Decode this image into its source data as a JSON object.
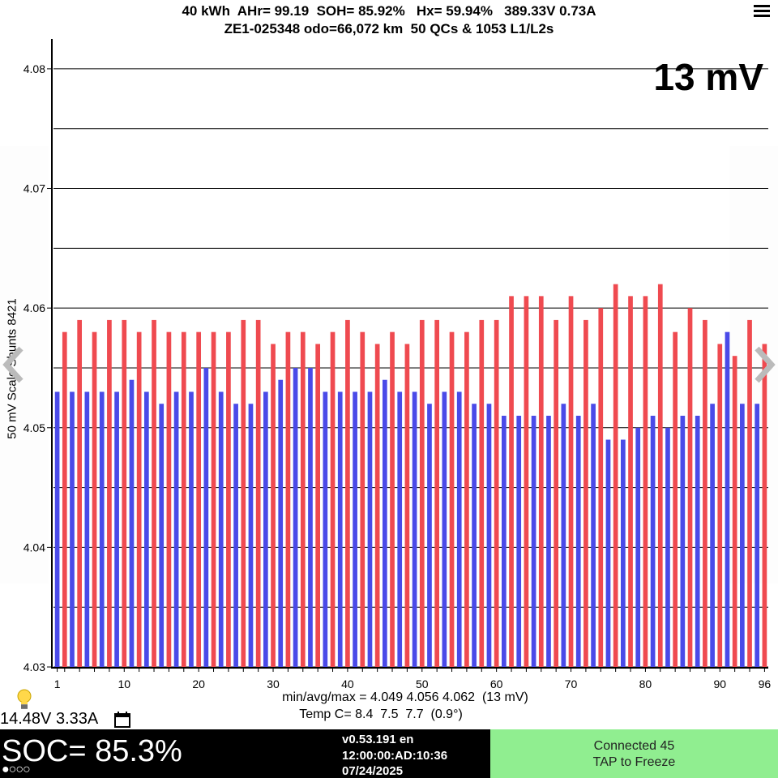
{
  "header": {
    "line1": "40 kWh  AHr= 99.19  SOH= 85.92%   Hx= 59.94%   389.33V 0.73A",
    "line2": "ZE1-025348 odo=66,072 km  50 QCs & 1053 L1/L2s"
  },
  "spread_label": "13 mV",
  "stats": {
    "minavgmax": "min/avg/max = 4.049 4.056 4.062  (13 mV)",
    "temp": "Temp C= 8.4  7.5  7.7  (0.9°)"
  },
  "status": {
    "aux_voltage": "14.48V 3.33A",
    "soc": "SOC= 85.3%",
    "version": "v0.53.191 en",
    "clock": "12:00:00:AD:10:36",
    "date": "07/24/2025",
    "dots": "●○○○"
  },
  "connection": {
    "line1": "Connected 45",
    "line2": "TAP to Freeze"
  },
  "icons": {
    "menu": "menu-icon",
    "bulb": "lightbulb-icon",
    "calendar": "calendar-icon",
    "left": "chevron-left-icon",
    "right": "chevron-right-icon"
  },
  "colors": {
    "odd_cell": "#4a4ae8",
    "even_cell": "#ef4a50",
    "connect_bg": "#90ee90"
  },
  "chart_data": {
    "type": "bar",
    "ylabel": "50 mV Scale  Shunts 8421",
    "ylim": [
      4.03,
      4.0825
    ],
    "yticks": [
      4.03,
      4.04,
      4.05,
      4.06,
      4.07,
      4.08
    ],
    "ytick_labels": [
      "4.03",
      "4.04",
      "4.05",
      "4.06",
      "4.07",
      "4.08"
    ],
    "xticks": [
      1,
      10,
      20,
      30,
      40,
      50,
      60,
      70,
      80,
      90,
      96
    ],
    "xtick_labels": [
      "1",
      "10",
      "20",
      "30",
      "40",
      "50",
      "60",
      "70",
      "80",
      "90",
      "96"
    ],
    "x": [
      1,
      2,
      3,
      4,
      5,
      6,
      7,
      8,
      9,
      10,
      11,
      12,
      13,
      14,
      15,
      16,
      17,
      18,
      19,
      20,
      21,
      22,
      23,
      24,
      25,
      26,
      27,
      28,
      29,
      30,
      31,
      32,
      33,
      34,
      35,
      36,
      37,
      38,
      39,
      40,
      41,
      42,
      43,
      44,
      45,
      46,
      47,
      48,
      49,
      50,
      51,
      52,
      53,
      54,
      55,
      56,
      57,
      58,
      59,
      60,
      61,
      62,
      63,
      64,
      65,
      66,
      67,
      68,
      69,
      70,
      71,
      72,
      73,
      74,
      75,
      76,
      77,
      78,
      79,
      80,
      81,
      82,
      83,
      84,
      85,
      86,
      87,
      88,
      89,
      90,
      91,
      92,
      93,
      94,
      95,
      96
    ],
    "values": [
      4.053,
      4.058,
      4.053,
      4.059,
      4.053,
      4.058,
      4.053,
      4.059,
      4.053,
      4.059,
      4.054,
      4.058,
      4.053,
      4.059,
      4.052,
      4.058,
      4.053,
      4.058,
      4.053,
      4.058,
      4.055,
      4.058,
      4.053,
      4.058,
      4.052,
      4.059,
      4.052,
      4.059,
      4.053,
      4.057,
      4.054,
      4.058,
      4.055,
      4.058,
      4.055,
      4.057,
      4.053,
      4.058,
      4.053,
      4.059,
      4.053,
      4.058,
      4.053,
      4.057,
      4.054,
      4.058,
      4.053,
      4.057,
      4.053,
      4.059,
      4.052,
      4.059,
      4.053,
      4.058,
      4.053,
      4.058,
      4.052,
      4.059,
      4.052,
      4.059,
      4.051,
      4.061,
      4.051,
      4.061,
      4.051,
      4.061,
      4.051,
      4.059,
      4.052,
      4.061,
      4.051,
      4.059,
      4.052,
      4.06,
      4.049,
      4.062,
      4.049,
      4.061,
      4.05,
      4.061,
      4.051,
      4.062,
      4.05,
      4.058,
      4.051,
      4.06,
      4.051,
      4.059,
      4.052,
      4.057,
      4.058,
      4.056,
      4.052,
      4.059,
      4.052,
      4.057
    ]
  }
}
